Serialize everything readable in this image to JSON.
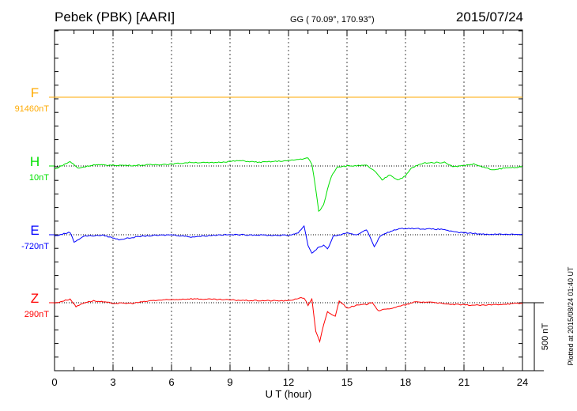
{
  "header": {
    "station": "Pebek (PBK)  [AARI]",
    "coords": "GG ( 70.09°, 170.93°)",
    "date": "2015/07/24"
  },
  "footer": {
    "plotted": "Plotted at 2015/08/24 01:40 UT"
  },
  "chart_data": {
    "type": "line",
    "title": "Pebek (PBK)  [AARI]",
    "xlabel": "U T (hour)",
    "ylabel": "",
    "xlim": [
      0,
      24
    ],
    "xticks": [
      "0",
      "3",
      "6",
      "9",
      "12",
      "15",
      "18",
      "21",
      "24"
    ],
    "grid": true,
    "scale_bar": "500 nT",
    "scale_bar_nT": 500,
    "series": [
      {
        "name": "F",
        "baseline": "91460nT",
        "color": "#ffaa00",
        "points": [
          [
            0,
            0
          ],
          [
            24,
            0
          ]
        ]
      },
      {
        "name": "H",
        "baseline": "10nT",
        "color": "#00e000",
        "points": [
          [
            0,
            -25
          ],
          [
            0.8,
            33
          ],
          [
            1.2,
            -16
          ],
          [
            2,
            8
          ],
          [
            4,
            4
          ],
          [
            6,
            14
          ],
          [
            7,
            27
          ],
          [
            8,
            23
          ],
          [
            9.5,
            39
          ],
          [
            10.5,
            27
          ],
          [
            12,
            39
          ],
          [
            12.7,
            52
          ],
          [
            13,
            58
          ],
          [
            13.2,
            14
          ],
          [
            13.4,
            -171
          ],
          [
            13.55,
            -336
          ],
          [
            13.8,
            -287
          ],
          [
            14,
            -171
          ],
          [
            14.2,
            -74
          ],
          [
            14.5,
            -6
          ],
          [
            15,
            0
          ],
          [
            16,
            4
          ],
          [
            16.4,
            -35
          ],
          [
            16.8,
            -103
          ],
          [
            17.2,
            -64
          ],
          [
            17.6,
            -103
          ],
          [
            18,
            -74
          ],
          [
            18.3,
            -16
          ],
          [
            18.6,
            4
          ],
          [
            19,
            23
          ],
          [
            20,
            27
          ],
          [
            20.5,
            -6
          ],
          [
            21.5,
            14
          ],
          [
            22.5,
            -31
          ],
          [
            23,
            -16
          ],
          [
            24,
            -6
          ]
        ]
      },
      {
        "name": "E",
        "baseline": "-720nT",
        "color": "#0000ff",
        "points": [
          [
            0,
            -10
          ],
          [
            0.8,
            19
          ],
          [
            1,
            -54
          ],
          [
            1.5,
            -10
          ],
          [
            2.5,
            -4
          ],
          [
            3.3,
            -35
          ],
          [
            4.5,
            -10
          ],
          [
            6,
            0
          ],
          [
            7,
            -16
          ],
          [
            8.5,
            0
          ],
          [
            10,
            0
          ],
          [
            11,
            -4
          ],
          [
            12,
            -4
          ],
          [
            12.5,
            14
          ],
          [
            12.8,
            66
          ],
          [
            13,
            -78
          ],
          [
            13.2,
            -136
          ],
          [
            13.5,
            -97
          ],
          [
            13.8,
            -78
          ],
          [
            14,
            -107
          ],
          [
            14.3,
            -10
          ],
          [
            15,
            10
          ],
          [
            15.5,
            0
          ],
          [
            16,
            39
          ],
          [
            16.4,
            -87
          ],
          [
            16.7,
            -10
          ],
          [
            17,
            10
          ],
          [
            17.5,
            39
          ],
          [
            18,
            48
          ],
          [
            19,
            43
          ],
          [
            20,
            39
          ],
          [
            20.5,
            19
          ],
          [
            21.5,
            10
          ],
          [
            22,
            4
          ],
          [
            24,
            4
          ]
        ]
      },
      {
        "name": "Z",
        "baseline": "290nT",
        "color": "#ff0000",
        "points": [
          [
            0,
            -4
          ],
          [
            0.8,
            27
          ],
          [
            1.1,
            -29
          ],
          [
            1.5,
            0
          ],
          [
            2,
            14
          ],
          [
            3,
            -4
          ],
          [
            4,
            -4
          ],
          [
            5,
            16
          ],
          [
            7,
            29
          ],
          [
            8.5,
            23
          ],
          [
            10,
            16
          ],
          [
            12,
            14
          ],
          [
            12.5,
            33
          ],
          [
            12.8,
            35
          ],
          [
            13,
            -19
          ],
          [
            13.2,
            29
          ],
          [
            13.4,
            -213
          ],
          [
            13.6,
            -287
          ],
          [
            13.8,
            -165
          ],
          [
            14,
            -68
          ],
          [
            14.4,
            -101
          ],
          [
            14.6,
            16
          ],
          [
            15,
            -39
          ],
          [
            15.5,
            -19
          ],
          [
            16,
            -12
          ],
          [
            16.3,
            4
          ],
          [
            16.6,
            -58
          ],
          [
            17,
            -49
          ],
          [
            18,
            -16
          ],
          [
            18.5,
            6
          ],
          [
            19.5,
            4
          ],
          [
            20,
            -10
          ],
          [
            21,
            -16
          ],
          [
            22,
            -19
          ],
          [
            23,
            -10
          ],
          [
            24,
            -4
          ]
        ]
      }
    ]
  }
}
